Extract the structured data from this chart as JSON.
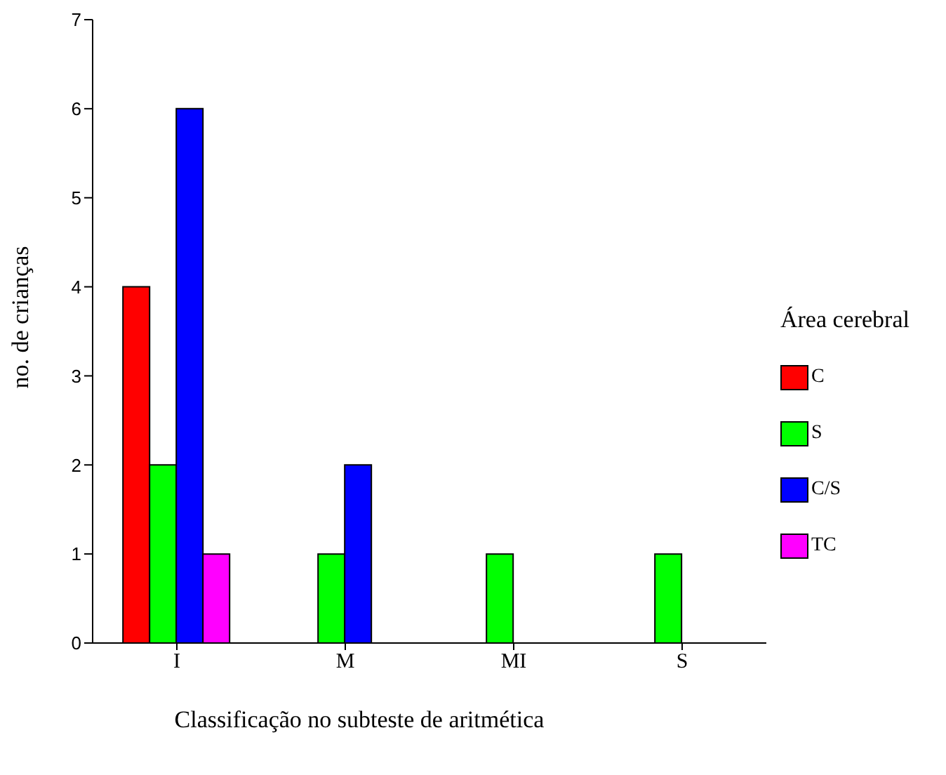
{
  "chart_data": {
    "type": "bar",
    "xlabel": "Classificação no subteste de aritmética",
    "ylabel": "no. de crianças",
    "legend_title": "Área cerebral",
    "categories": [
      "I",
      "M",
      "MI",
      "S"
    ],
    "series": [
      {
        "name": "C",
        "color": "#ff0000",
        "values": [
          4,
          0,
          0,
          0
        ]
      },
      {
        "name": "S",
        "color": "#00ff00",
        "values": [
          2,
          1,
          1,
          1
        ]
      },
      {
        "name": "C/S",
        "color": "#0000ff",
        "values": [
          6,
          2,
          0,
          0
        ]
      },
      {
        "name": "TC",
        "color": "#ff00ff",
        "values": [
          1,
          0,
          0,
          0
        ]
      }
    ],
    "ylim": [
      0,
      7
    ],
    "yticks": [
      0,
      1,
      2,
      3,
      4,
      5,
      6,
      7
    ],
    "grid": false,
    "legend": "right"
  }
}
